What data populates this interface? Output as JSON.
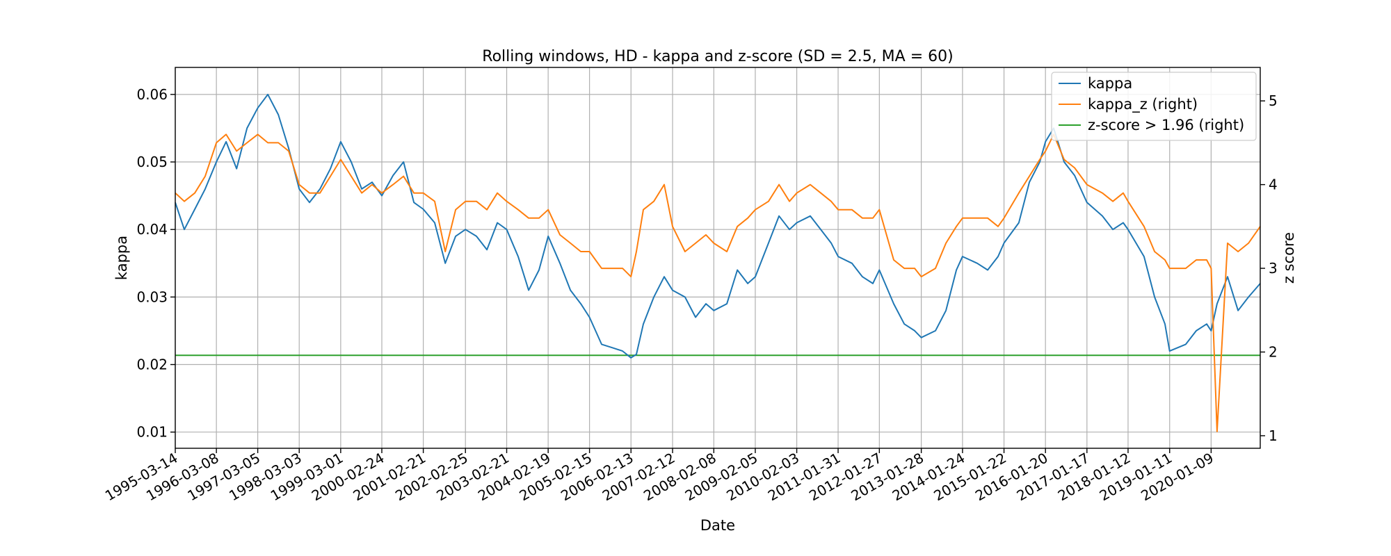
{
  "chart_data": {
    "type": "line",
    "title": "Rolling windows, HD - kappa and z-score (SD = 2.5, MA = 60)",
    "xlabel": "Date",
    "ylabel": "kappa",
    "ylabel_right": "z score",
    "ylim": [
      0.0076,
      0.064
    ],
    "ylim_right": [
      0.85,
      5.4
    ],
    "yticks": [
      "0.01",
      "0.02",
      "0.03",
      "0.04",
      "0.05",
      "0.06"
    ],
    "yticks_right": [
      "1",
      "2",
      "3",
      "4",
      "5"
    ],
    "x_range": [
      "1995-03-14",
      "2021-03-14"
    ],
    "xticks": [
      "1995-03-14",
      "1996-03-08",
      "1997-03-05",
      "1998-03-03",
      "1999-03-01",
      "2000-02-24",
      "2001-02-21",
      "2002-02-25",
      "2003-02-21",
      "2004-02-19",
      "2005-02-15",
      "2006-02-13",
      "2007-02-12",
      "2008-02-08",
      "2009-02-05",
      "2010-02-03",
      "2011-01-31",
      "2012-01-27",
      "2013-01-28",
      "2014-01-24",
      "2015-01-22",
      "2016-01-20",
      "2017-01-17",
      "2018-01-12",
      "2019-01-11",
      "2020-01-09"
    ],
    "grid": true,
    "legend_position": "top-right",
    "series": [
      {
        "name": "kappa",
        "axis": "left",
        "color": "#1f77b4",
        "points": [
          [
            "1995-03-14",
            0.044
          ],
          [
            "1995-06-01",
            0.04
          ],
          [
            "1995-09-01",
            0.043
          ],
          [
            "1995-12-01",
            0.046
          ],
          [
            "1996-03-08",
            0.05
          ],
          [
            "1996-06-01",
            0.053
          ],
          [
            "1996-09-01",
            0.049
          ],
          [
            "1996-12-01",
            0.055
          ],
          [
            "1997-03-05",
            0.058
          ],
          [
            "1997-06-01",
            0.06
          ],
          [
            "1997-09-01",
            0.057
          ],
          [
            "1997-12-01",
            0.052
          ],
          [
            "1998-03-03",
            0.046
          ],
          [
            "1998-06-01",
            0.044
          ],
          [
            "1998-09-01",
            0.046
          ],
          [
            "1998-12-01",
            0.049
          ],
          [
            "1999-03-01",
            0.053
          ],
          [
            "1999-06-01",
            0.05
          ],
          [
            "1999-09-01",
            0.046
          ],
          [
            "1999-12-01",
            0.047
          ],
          [
            "2000-02-24",
            0.045
          ],
          [
            "2000-06-01",
            0.048
          ],
          [
            "2000-09-01",
            0.05
          ],
          [
            "2000-12-01",
            0.044
          ],
          [
            "2001-02-21",
            0.043
          ],
          [
            "2001-06-01",
            0.041
          ],
          [
            "2001-09-01",
            0.035
          ],
          [
            "2001-12-01",
            0.039
          ],
          [
            "2002-02-25",
            0.04
          ],
          [
            "2002-06-01",
            0.039
          ],
          [
            "2002-09-01",
            0.037
          ],
          [
            "2002-12-01",
            0.041
          ],
          [
            "2003-02-21",
            0.04
          ],
          [
            "2003-06-01",
            0.036
          ],
          [
            "2003-09-01",
            0.031
          ],
          [
            "2003-12-01",
            0.034
          ],
          [
            "2004-02-19",
            0.039
          ],
          [
            "2004-06-01",
            0.035
          ],
          [
            "2004-09-01",
            0.031
          ],
          [
            "2004-12-01",
            0.029
          ],
          [
            "2005-02-15",
            0.027
          ],
          [
            "2005-06-01",
            0.023
          ],
          [
            "2005-09-01",
            0.0225
          ],
          [
            "2005-12-01",
            0.022
          ],
          [
            "2006-02-13",
            0.021
          ],
          [
            "2006-04-01",
            0.0215
          ],
          [
            "2006-06-01",
            0.026
          ],
          [
            "2006-09-01",
            0.03
          ],
          [
            "2006-12-01",
            0.033
          ],
          [
            "2007-02-12",
            0.031
          ],
          [
            "2007-06-01",
            0.03
          ],
          [
            "2007-09-01",
            0.027
          ],
          [
            "2007-12-01",
            0.029
          ],
          [
            "2008-02-08",
            0.028
          ],
          [
            "2008-06-01",
            0.029
          ],
          [
            "2008-09-01",
            0.034
          ],
          [
            "2008-12-01",
            0.032
          ],
          [
            "2009-02-05",
            0.033
          ],
          [
            "2009-06-01",
            0.038
          ],
          [
            "2009-09-01",
            0.042
          ],
          [
            "2009-12-01",
            0.04
          ],
          [
            "2010-02-03",
            0.041
          ],
          [
            "2010-06-01",
            0.042
          ],
          [
            "2010-09-01",
            0.04
          ],
          [
            "2010-12-01",
            0.038
          ],
          [
            "2011-01-31",
            0.036
          ],
          [
            "2011-06-01",
            0.035
          ],
          [
            "2011-09-01",
            0.033
          ],
          [
            "2011-12-01",
            0.032
          ],
          [
            "2012-01-27",
            0.034
          ],
          [
            "2012-06-01",
            0.029
          ],
          [
            "2012-09-01",
            0.026
          ],
          [
            "2012-12-01",
            0.025
          ],
          [
            "2013-01-28",
            0.024
          ],
          [
            "2013-06-01",
            0.025
          ],
          [
            "2013-09-01",
            0.028
          ],
          [
            "2013-12-01",
            0.034
          ],
          [
            "2014-01-24",
            0.036
          ],
          [
            "2014-06-01",
            0.035
          ],
          [
            "2014-09-01",
            0.034
          ],
          [
            "2014-12-01",
            0.036
          ],
          [
            "2015-01-22",
            0.038
          ],
          [
            "2015-06-01",
            0.041
          ],
          [
            "2015-09-01",
            0.047
          ],
          [
            "2015-12-01",
            0.05
          ],
          [
            "2016-01-20",
            0.053
          ],
          [
            "2016-04-01",
            0.055
          ],
          [
            "2016-07-01",
            0.05
          ],
          [
            "2016-10-01",
            0.048
          ],
          [
            "2017-01-17",
            0.044
          ],
          [
            "2017-06-01",
            0.042
          ],
          [
            "2017-09-01",
            0.04
          ],
          [
            "2017-12-01",
            0.041
          ],
          [
            "2018-01-12",
            0.04
          ],
          [
            "2018-06-01",
            0.036
          ],
          [
            "2018-09-01",
            0.03
          ],
          [
            "2018-12-01",
            0.026
          ],
          [
            "2019-01-11",
            0.022
          ],
          [
            "2019-06-01",
            0.023
          ],
          [
            "2019-09-01",
            0.025
          ],
          [
            "2019-12-01",
            0.026
          ],
          [
            "2020-01-09",
            0.025
          ],
          [
            "2020-03-01",
            0.029
          ],
          [
            "2020-06-01",
            0.033
          ],
          [
            "2020-09-01",
            0.028
          ],
          [
            "2020-12-01",
            0.03
          ],
          [
            "2021-03-14",
            0.032
          ]
        ]
      },
      {
        "name": "kappa_z (right)",
        "axis": "right",
        "color": "#ff7f0e",
        "points": [
          [
            "1995-03-14",
            3.9
          ],
          [
            "1995-06-01",
            3.8
          ],
          [
            "1995-09-01",
            3.9
          ],
          [
            "1995-12-01",
            4.1
          ],
          [
            "1996-03-08",
            4.5
          ],
          [
            "1996-06-01",
            4.6
          ],
          [
            "1996-09-01",
            4.4
          ],
          [
            "1996-12-01",
            4.5
          ],
          [
            "1997-03-05",
            4.6
          ],
          [
            "1997-06-01",
            4.5
          ],
          [
            "1997-09-01",
            4.5
          ],
          [
            "1997-12-01",
            4.4
          ],
          [
            "1998-03-03",
            4.0
          ],
          [
            "1998-06-01",
            3.9
          ],
          [
            "1998-09-01",
            3.9
          ],
          [
            "1998-12-01",
            4.1
          ],
          [
            "1999-03-01",
            4.3
          ],
          [
            "1999-06-01",
            4.1
          ],
          [
            "1999-09-01",
            3.9
          ],
          [
            "1999-12-01",
            4.0
          ],
          [
            "2000-02-24",
            3.9
          ],
          [
            "2000-06-01",
            4.0
          ],
          [
            "2000-09-01",
            4.1
          ],
          [
            "2000-12-01",
            3.9
          ],
          [
            "2001-02-21",
            3.9
          ],
          [
            "2001-06-01",
            3.8
          ],
          [
            "2001-09-01",
            3.2
          ],
          [
            "2001-12-01",
            3.7
          ],
          [
            "2002-02-25",
            3.8
          ],
          [
            "2002-06-01",
            3.8
          ],
          [
            "2002-09-01",
            3.7
          ],
          [
            "2002-12-01",
            3.9
          ],
          [
            "2003-02-21",
            3.8
          ],
          [
            "2003-06-01",
            3.7
          ],
          [
            "2003-09-01",
            3.6
          ],
          [
            "2003-12-01",
            3.6
          ],
          [
            "2004-02-19",
            3.7
          ],
          [
            "2004-06-01",
            3.4
          ],
          [
            "2004-09-01",
            3.3
          ],
          [
            "2004-12-01",
            3.2
          ],
          [
            "2005-02-15",
            3.2
          ],
          [
            "2005-06-01",
            3.0
          ],
          [
            "2005-09-01",
            3.0
          ],
          [
            "2005-12-01",
            3.0
          ],
          [
            "2006-02-13",
            2.9
          ],
          [
            "2006-04-01",
            3.2
          ],
          [
            "2006-06-01",
            3.7
          ],
          [
            "2006-09-01",
            3.8
          ],
          [
            "2006-12-01",
            4.0
          ],
          [
            "2007-02-12",
            3.5
          ],
          [
            "2007-06-01",
            3.2
          ],
          [
            "2007-09-01",
            3.3
          ],
          [
            "2007-12-01",
            3.4
          ],
          [
            "2008-02-08",
            3.3
          ],
          [
            "2008-06-01",
            3.2
          ],
          [
            "2008-09-01",
            3.5
          ],
          [
            "2008-12-01",
            3.6
          ],
          [
            "2009-02-05",
            3.7
          ],
          [
            "2009-06-01",
            3.8
          ],
          [
            "2009-09-01",
            4.0
          ],
          [
            "2009-12-01",
            3.8
          ],
          [
            "2010-02-03",
            3.9
          ],
          [
            "2010-06-01",
            4.0
          ],
          [
            "2010-09-01",
            3.9
          ],
          [
            "2010-12-01",
            3.8
          ],
          [
            "2011-01-31",
            3.7
          ],
          [
            "2011-06-01",
            3.7
          ],
          [
            "2011-09-01",
            3.6
          ],
          [
            "2011-12-01",
            3.6
          ],
          [
            "2012-01-27",
            3.7
          ],
          [
            "2012-06-01",
            3.1
          ],
          [
            "2012-09-01",
            3.0
          ],
          [
            "2012-12-01",
            3.0
          ],
          [
            "2013-01-28",
            2.9
          ],
          [
            "2013-06-01",
            3.0
          ],
          [
            "2013-09-01",
            3.3
          ],
          [
            "2013-12-01",
            3.5
          ],
          [
            "2014-01-24",
            3.6
          ],
          [
            "2014-06-01",
            3.6
          ],
          [
            "2014-09-01",
            3.6
          ],
          [
            "2014-12-01",
            3.5
          ],
          [
            "2015-01-22",
            3.6
          ],
          [
            "2015-06-01",
            3.9
          ],
          [
            "2015-09-01",
            4.1
          ],
          [
            "2015-12-01",
            4.3
          ],
          [
            "2016-01-20",
            4.4
          ],
          [
            "2016-04-01",
            4.6
          ],
          [
            "2016-07-01",
            4.3
          ],
          [
            "2016-10-01",
            4.2
          ],
          [
            "2017-01-17",
            4.0
          ],
          [
            "2017-06-01",
            3.9
          ],
          [
            "2017-09-01",
            3.8
          ],
          [
            "2017-12-01",
            3.9
          ],
          [
            "2018-01-12",
            3.8
          ],
          [
            "2018-06-01",
            3.5
          ],
          [
            "2018-09-01",
            3.2
          ],
          [
            "2018-12-01",
            3.1
          ],
          [
            "2019-01-11",
            3.0
          ],
          [
            "2019-06-01",
            3.0
          ],
          [
            "2019-09-01",
            3.1
          ],
          [
            "2019-12-01",
            3.1
          ],
          [
            "2020-01-09",
            3.0
          ],
          [
            "2020-03-01",
            1.05
          ],
          [
            "2020-06-01",
            3.3
          ],
          [
            "2020-09-01",
            3.2
          ],
          [
            "2020-12-01",
            3.3
          ],
          [
            "2021-03-14",
            3.5
          ]
        ]
      },
      {
        "name": "z-score > 1.96 (right)",
        "axis": "right",
        "color": "#2ca02c",
        "points": [
          [
            "1995-03-14",
            1.96
          ],
          [
            "2021-03-14",
            1.96
          ]
        ]
      }
    ]
  }
}
